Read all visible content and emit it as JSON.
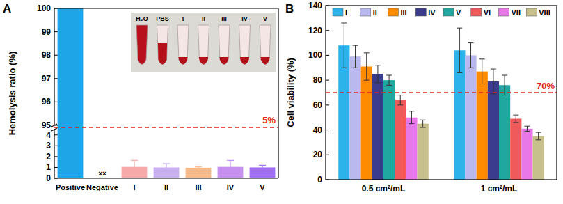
{
  "chart_data": [
    {
      "type": "bar",
      "title": "A",
      "y_label": "Hemolysis ratio (%)",
      "categories": [
        "Positive",
        "Negative",
        "I",
        "II",
        "III",
        "IV",
        "V"
      ],
      "values": [
        100,
        0,
        1.05,
        1.0,
        0.97,
        1.05,
        1.0
      ],
      "errors": [
        null,
        null,
        0.6,
        0.35,
        0.08,
        0.6,
        0.2
      ],
      "value_labels": [
        null,
        "××",
        null,
        null,
        null,
        null,
        null
      ],
      "colors": [
        "#1ea5e8",
        "#888888",
        "#f7a8a8",
        "#c8b0ee",
        "#f5b98a",
        "#c690f0",
        "#a070ee"
      ],
      "ylim": [
        0,
        100
      ],
      "y_break": [
        4.5,
        95
      ],
      "yticks": [
        0,
        1,
        2,
        3,
        4,
        95,
        96,
        97,
        98,
        99,
        100
      ],
      "threshold": 5,
      "threshold_label": "5%",
      "inset_labels": [
        "H₂O",
        "PBS",
        "I",
        "II",
        "III",
        "IV",
        "V"
      ]
    },
    {
      "type": "bar",
      "title": "B",
      "y_label": "Cell viability (%)",
      "categories": [
        "0.5 cm²/mL",
        "1 cm²/mL"
      ],
      "series": [
        {
          "name": "I",
          "color": "#2bb3ea",
          "values": [
            108,
            104
          ],
          "errors": [
            18,
            18
          ]
        },
        {
          "name": "II",
          "color": "#b9b9f0",
          "values": [
            99,
            100
          ],
          "errors": [
            9,
            10
          ]
        },
        {
          "name": "III",
          "color": "#ff8c00",
          "values": [
            91,
            87
          ],
          "errors": [
            11,
            10
          ]
        },
        {
          "name": "IV",
          "color": "#3c3c8c",
          "values": [
            85,
            79
          ],
          "errors": [
            7,
            10
          ]
        },
        {
          "name": "V",
          "color": "#20a8a0",
          "values": [
            80,
            76
          ],
          "errors": [
            4,
            8
          ]
        },
        {
          "name": "VI",
          "color": "#f05a5a",
          "values": [
            64,
            49
          ],
          "errors": [
            4,
            3
          ]
        },
        {
          "name": "VII",
          "color": "#e878e8",
          "values": [
            50,
            41
          ],
          "errors": [
            5,
            2
          ]
        },
        {
          "name": "VIII",
          "color": "#c8c08c",
          "values": [
            45,
            35
          ],
          "errors": [
            3,
            3
          ]
        }
      ],
      "ylim": [
        0,
        140
      ],
      "yticks": [
        0,
        20,
        40,
        60,
        80,
        100,
        120,
        140
      ],
      "legend": "top",
      "threshold": 70,
      "threshold_label": "70%"
    }
  ]
}
